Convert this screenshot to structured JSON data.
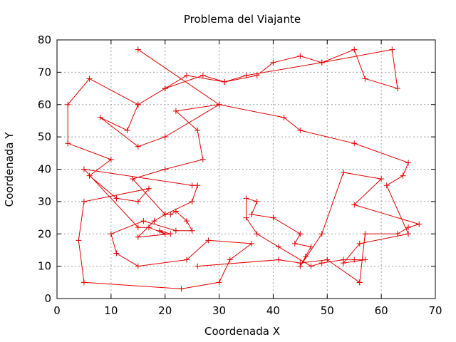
{
  "chart_data": {
    "type": "line",
    "title": "Problema del Viajante",
    "xlabel": "Coordenada X",
    "ylabel": "Coordenada Y",
    "xlim": [
      0,
      70
    ],
    "ylim": [
      0,
      80
    ],
    "xticks": [
      0,
      10,
      20,
      30,
      40,
      50,
      60,
      70
    ],
    "yticks": [
      0,
      10,
      20,
      30,
      40,
      50,
      60,
      70,
      80
    ],
    "grid": true,
    "line_color": "#e00000",
    "marker": "plus",
    "series": [
      {
        "x": [
          15,
          30,
          20,
          15,
          8,
          13,
          15,
          20,
          24,
          31,
          37,
          40,
          45,
          49,
          55,
          57,
          63,
          62,
          49,
          35,
          31,
          27,
          20,
          15,
          6,
          2,
          2,
          10,
          6,
          11,
          15,
          17,
          5,
          4,
          5,
          23,
          30,
          32,
          36,
          28,
          24,
          15,
          11,
          10,
          16,
          22,
          25,
          24,
          22,
          21,
          20,
          18,
          15,
          21,
          19,
          20,
          17,
          15,
          5,
          25,
          26,
          25,
          20,
          14,
          20,
          27,
          26,
          22,
          30,
          42,
          45,
          55,
          65,
          64,
          61,
          65,
          56,
          53,
          57,
          55,
          53,
          49,
          47,
          41,
          37,
          35,
          35,
          37,
          36,
          40,
          45,
          44,
          47,
          46,
          45,
          49,
          53,
          60,
          55,
          67,
          65,
          63,
          57,
          56,
          56,
          50,
          45,
          41,
          26
        ],
        "y": [
          77,
          60,
          50,
          47,
          56,
          52,
          60,
          65,
          69,
          67,
          69,
          73,
          75,
          73,
          77,
          68,
          65,
          77,
          73,
          69,
          67,
          69,
          65,
          60,
          68,
          60,
          48,
          43,
          38,
          31,
          30,
          34,
          30,
          18,
          5,
          3,
          5,
          12,
          17,
          18,
          12,
          10,
          14,
          20,
          24,
          21,
          21,
          24,
          27,
          26,
          26,
          24,
          19,
          20,
          21,
          20,
          22,
          22,
          40,
          35,
          35,
          30,
          26,
          37,
          40,
          43,
          52,
          58,
          60,
          56,
          52,
          48,
          42,
          38,
          35,
          20,
          17,
          11,
          12,
          12,
          12,
          11,
          10,
          16,
          20,
          25,
          31,
          30,
          26,
          25,
          20,
          17,
          16,
          13,
          10,
          20,
          39,
          37,
          29,
          23,
          22,
          20,
          20,
          5,
          5,
          12,
          11,
          12,
          10
        ]
      }
    ]
  }
}
